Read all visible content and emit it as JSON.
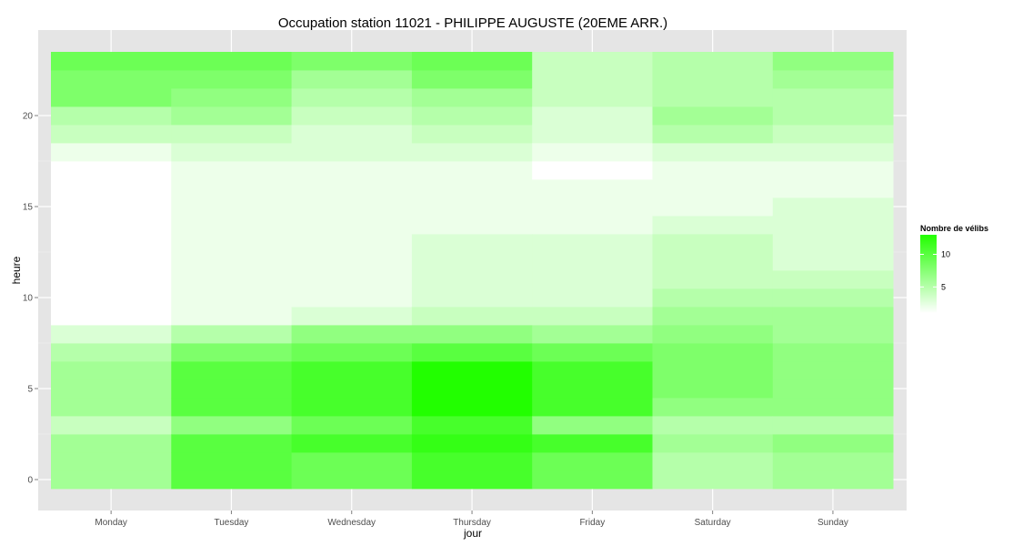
{
  "chart_data": {
    "type": "heatmap",
    "title": "Occupation station 11021 - PHILIPPE AUGUSTE (20EME ARR.)",
    "xlabel": "jour",
    "ylabel": "heure",
    "x_categories": [
      "Monday",
      "Tuesday",
      "Wednesday",
      "Thursday",
      "Friday",
      "Saturday",
      "Sunday"
    ],
    "y_values": [
      0,
      1,
      2,
      3,
      4,
      5,
      6,
      7,
      8,
      9,
      10,
      11,
      12,
      13,
      14,
      15,
      16,
      17,
      18,
      19,
      20,
      21,
      22,
      23
    ],
    "y_ticks": [
      0,
      5,
      10,
      15,
      20
    ],
    "ylim": [
      -0.5,
      23.5
    ],
    "grid": true,
    "legend_position": "right",
    "color_scale": {
      "title": "Nombre de vélibs",
      "low_color": "#ffffff",
      "high_color": "#22ff00",
      "min": 1,
      "max": 13,
      "breaks": [
        5,
        10
      ]
    },
    "values": [
      [
        6,
        6,
        6,
        4,
        6,
        6,
        6,
        5,
        3,
        1,
        1,
        1,
        1,
        1,
        1,
        1,
        1,
        1,
        2,
        4,
        5,
        8,
        8,
        9
      ],
      [
        10,
        10,
        10,
        7,
        10,
        10,
        10,
        8,
        5,
        2,
        2,
        2,
        2,
        2,
        2,
        2,
        2,
        2,
        3,
        4,
        6,
        7,
        8,
        9
      ],
      [
        9,
        9,
        11,
        9,
        11,
        11,
        11,
        9,
        7,
        3,
        2,
        2,
        2,
        2,
        2,
        2,
        2,
        2,
        3,
        3,
        4,
        5,
        6,
        8
      ],
      [
        11,
        11,
        12,
        11,
        13,
        13,
        13,
        10,
        7,
        4,
        3,
        3,
        3,
        3,
        2,
        2,
        2,
        2,
        3,
        4,
        5,
        6,
        8,
        9
      ],
      [
        9,
        9,
        11,
        7,
        11,
        11,
        11,
        9,
        6,
        4,
        3,
        3,
        3,
        3,
        2,
        2,
        2,
        1,
        2,
        3,
        3,
        4,
        4,
        4
      ],
      [
        5,
        5,
        6,
        5,
        7,
        8,
        8,
        8,
        7,
        6,
        5,
        4,
        4,
        4,
        3,
        2,
        2,
        2,
        3,
        5,
        6,
        5,
        5,
        5
      ],
      [
        6,
        6,
        7,
        5,
        7,
        7,
        7,
        7,
        6,
        6,
        5,
        4,
        3,
        3,
        3,
        3,
        2,
        2,
        3,
        4,
        5,
        5,
        6,
        7
      ]
    ]
  }
}
